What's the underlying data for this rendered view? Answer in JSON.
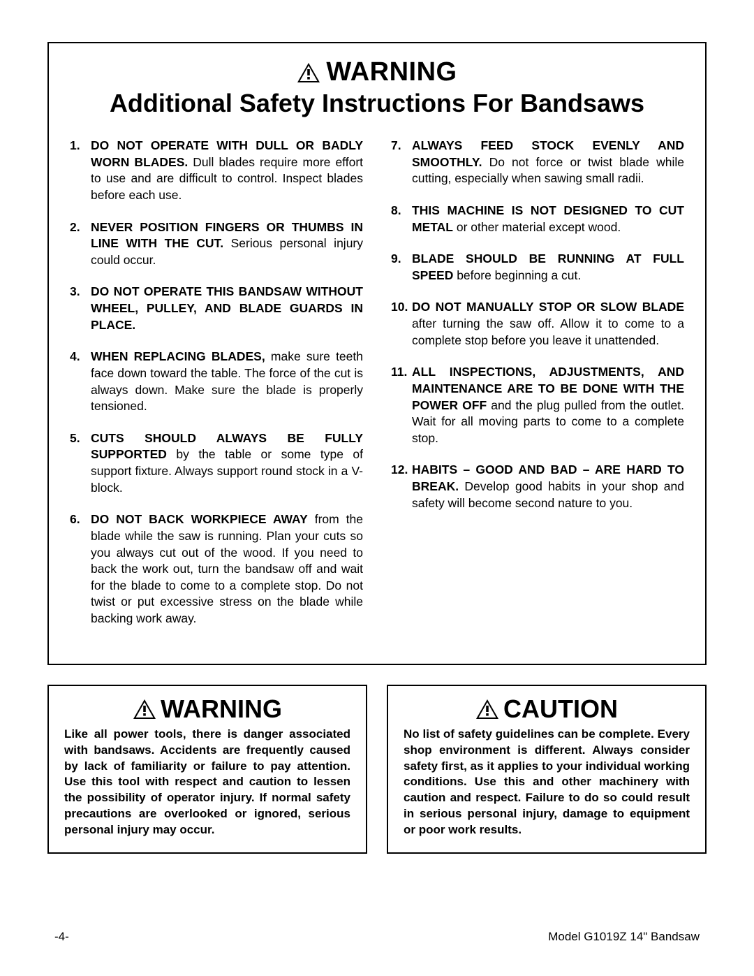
{
  "header": {
    "warning_label": "WARNING",
    "subtitle": "Additional Safety Instructions For Bandsaws"
  },
  "left_items": [
    {
      "n": "1.",
      "bold": "DO NOT OPERATE WITH DULL OR BADLY WORN BLADES.",
      "rest": " Dull blades require more effort to use and are difficult to control. Inspect blades before each use."
    },
    {
      "n": "2.",
      "bold": "NEVER POSITION FINGERS OR THUMBS IN LINE WITH THE CUT.",
      "rest": " Serious personal injury could occur."
    },
    {
      "n": "3.",
      "bold": "DO NOT OPERATE THIS BANDSAW WITHOUT WHEEL, PULLEY, AND BLADE GUARDS IN PLACE.",
      "rest": ""
    },
    {
      "n": "4.",
      "bold": "WHEN REPLACING BLADES,",
      "rest": " make sure teeth face down toward the table. The force of the cut is always down. Make sure the blade is properly tensioned."
    },
    {
      "n": "5.",
      "bold": "CUTS SHOULD ALWAYS BE FULLY SUPPORTED",
      "rest": " by the table or some type of support fixture. Always support round stock in a V-block."
    },
    {
      "n": "6.",
      "bold": "DO NOT BACK WORKPIECE AWAY",
      "rest": " from the blade while the saw is running. Plan your cuts so you always cut out of the wood. If you need to back the work out, turn the bandsaw off and wait for the blade to come to a complete stop. Do not twist or put excessive stress on the blade while backing work away."
    }
  ],
  "right_items": [
    {
      "n": "7.",
      "bold": "ALWAYS FEED STOCK EVENLY AND SMOOTHLY.",
      "rest": " Do not force or twist blade while cutting, especially when sawing small radii."
    },
    {
      "n": "8.",
      "bold": "THIS MACHINE IS NOT DESIGNED TO CUT METAL",
      "rest": " or other material except wood."
    },
    {
      "n": "9.",
      "bold": "BLADE SHOULD BE RUNNING AT FULL SPEED",
      "rest": " before beginning a cut."
    },
    {
      "n": "10.",
      "bold": "DO NOT MANUALLY STOP OR SLOW BLADE",
      "rest": " after turning the saw off. Allow it to come to a complete stop before you leave it unattended."
    },
    {
      "n": "11.",
      "bold": "ALL INSPECTIONS, ADJUSTMENTS, AND MAINTENANCE ARE TO BE DONE WITH THE POWER OFF",
      "rest": " and the plug pulled from the outlet. Wait for all moving parts to come to a complete stop."
    },
    {
      "n": "12.",
      "bold": "HABITS – GOOD AND BAD – ARE HARD TO BREAK.",
      "rest": " Develop good habits in your shop and safety will become second nature to you."
    }
  ],
  "lower_warning": {
    "label": "WARNING",
    "text": "Like all power tools, there is danger associated with bandsaws. Accidents are frequently caused by lack of familiarity or failure to pay attention. Use this tool with respect and caution to lessen the possibility of operator injury. If normal safety precautions are overlooked or ignored, serious personal injury may occur."
  },
  "lower_caution": {
    "label": "CAUTION",
    "text": "No list of safety guidelines can be complete. Every shop environment is different. Always consider safety first, as it applies to your individual working conditions. Use this and other machinery with caution and respect. Failure to do so could result in serious personal injury, damage to equipment or poor work results."
  },
  "footer": {
    "page": "-4-",
    "model": "Model G1019Z 14\" Bandsaw"
  },
  "colors": {
    "text": "#000000",
    "border": "#000000",
    "bg": "#ffffff"
  }
}
